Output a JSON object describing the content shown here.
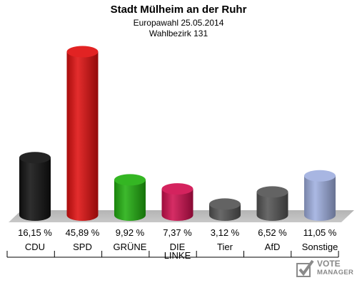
{
  "header": {
    "title": "Stadt Mülheim an der Ruhr",
    "subtitle1": "Europawahl 25.05.2014",
    "subtitle2": "Wahlbezirk 131"
  },
  "chart_data": {
    "type": "bar",
    "categories": [
      "CDU",
      "SPD",
      "GRÜNE",
      "DIE LINKE",
      "Tier",
      "AfD",
      "Sonstige"
    ],
    "category_lines": [
      [
        "CDU"
      ],
      [
        "SPD"
      ],
      [
        "GRÜNE"
      ],
      [
        "DIE",
        "LINKE"
      ],
      [
        "Tier"
      ],
      [
        "AfD"
      ],
      [
        "Sonstige"
      ]
    ],
    "values": [
      16.15,
      45.89,
      9.92,
      7.37,
      3.12,
      6.52,
      11.05
    ],
    "value_labels": [
      "16,15 %",
      "45,89 %",
      "9,92 %",
      "7,37 %",
      "3,12 %",
      "6,52 %",
      "11,05 %"
    ],
    "colors": [
      "#111111",
      "#e01010",
      "#22b010",
      "#d01050",
      "#555555",
      "#555555",
      "#a0b0e0"
    ],
    "title": "Stadt Mülheim an der Ruhr",
    "grid": false,
    "legend": "none"
  },
  "logo": {
    "line1": "VOTE",
    "line2": "MANAGER"
  }
}
